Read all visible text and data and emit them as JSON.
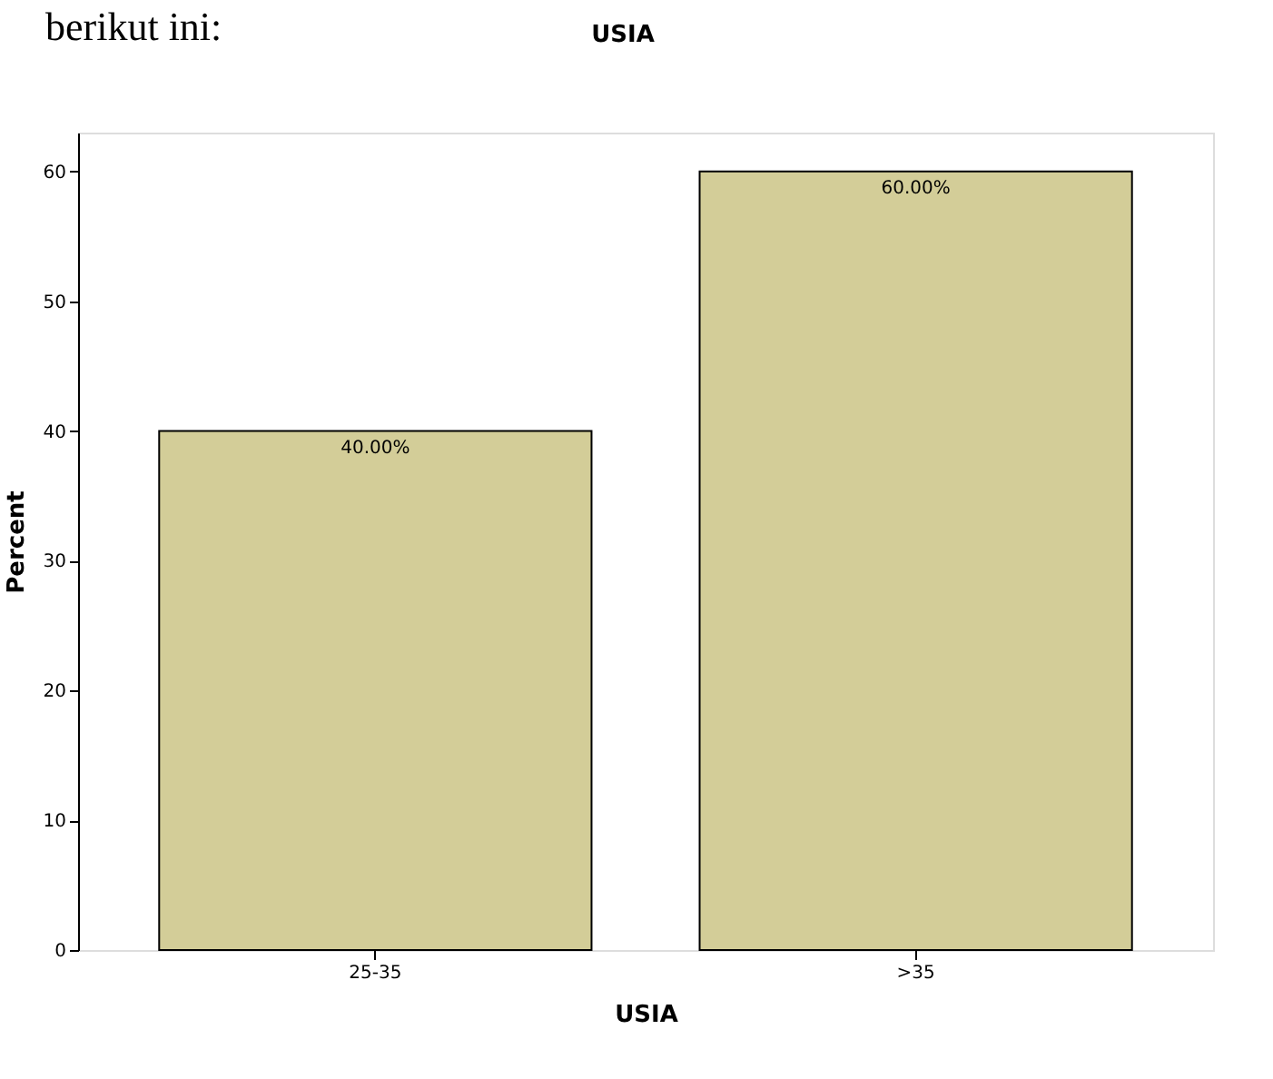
{
  "chart_data": {
    "type": "bar",
    "title": "USIA",
    "xlabel": "USIA",
    "ylabel": "Percent",
    "categories": [
      "25-35",
      ">35"
    ],
    "values": [
      40,
      60
    ],
    "color": "#d3cd98",
    "value_labels": [
      "40.00%",
      "60.00%"
    ],
    "ylim": [
      0,
      63
    ],
    "yticks": [
      0,
      10,
      20,
      30,
      40,
      50,
      60
    ],
    "grid": false,
    "annotations": [
      "berikut ini:"
    ]
  }
}
